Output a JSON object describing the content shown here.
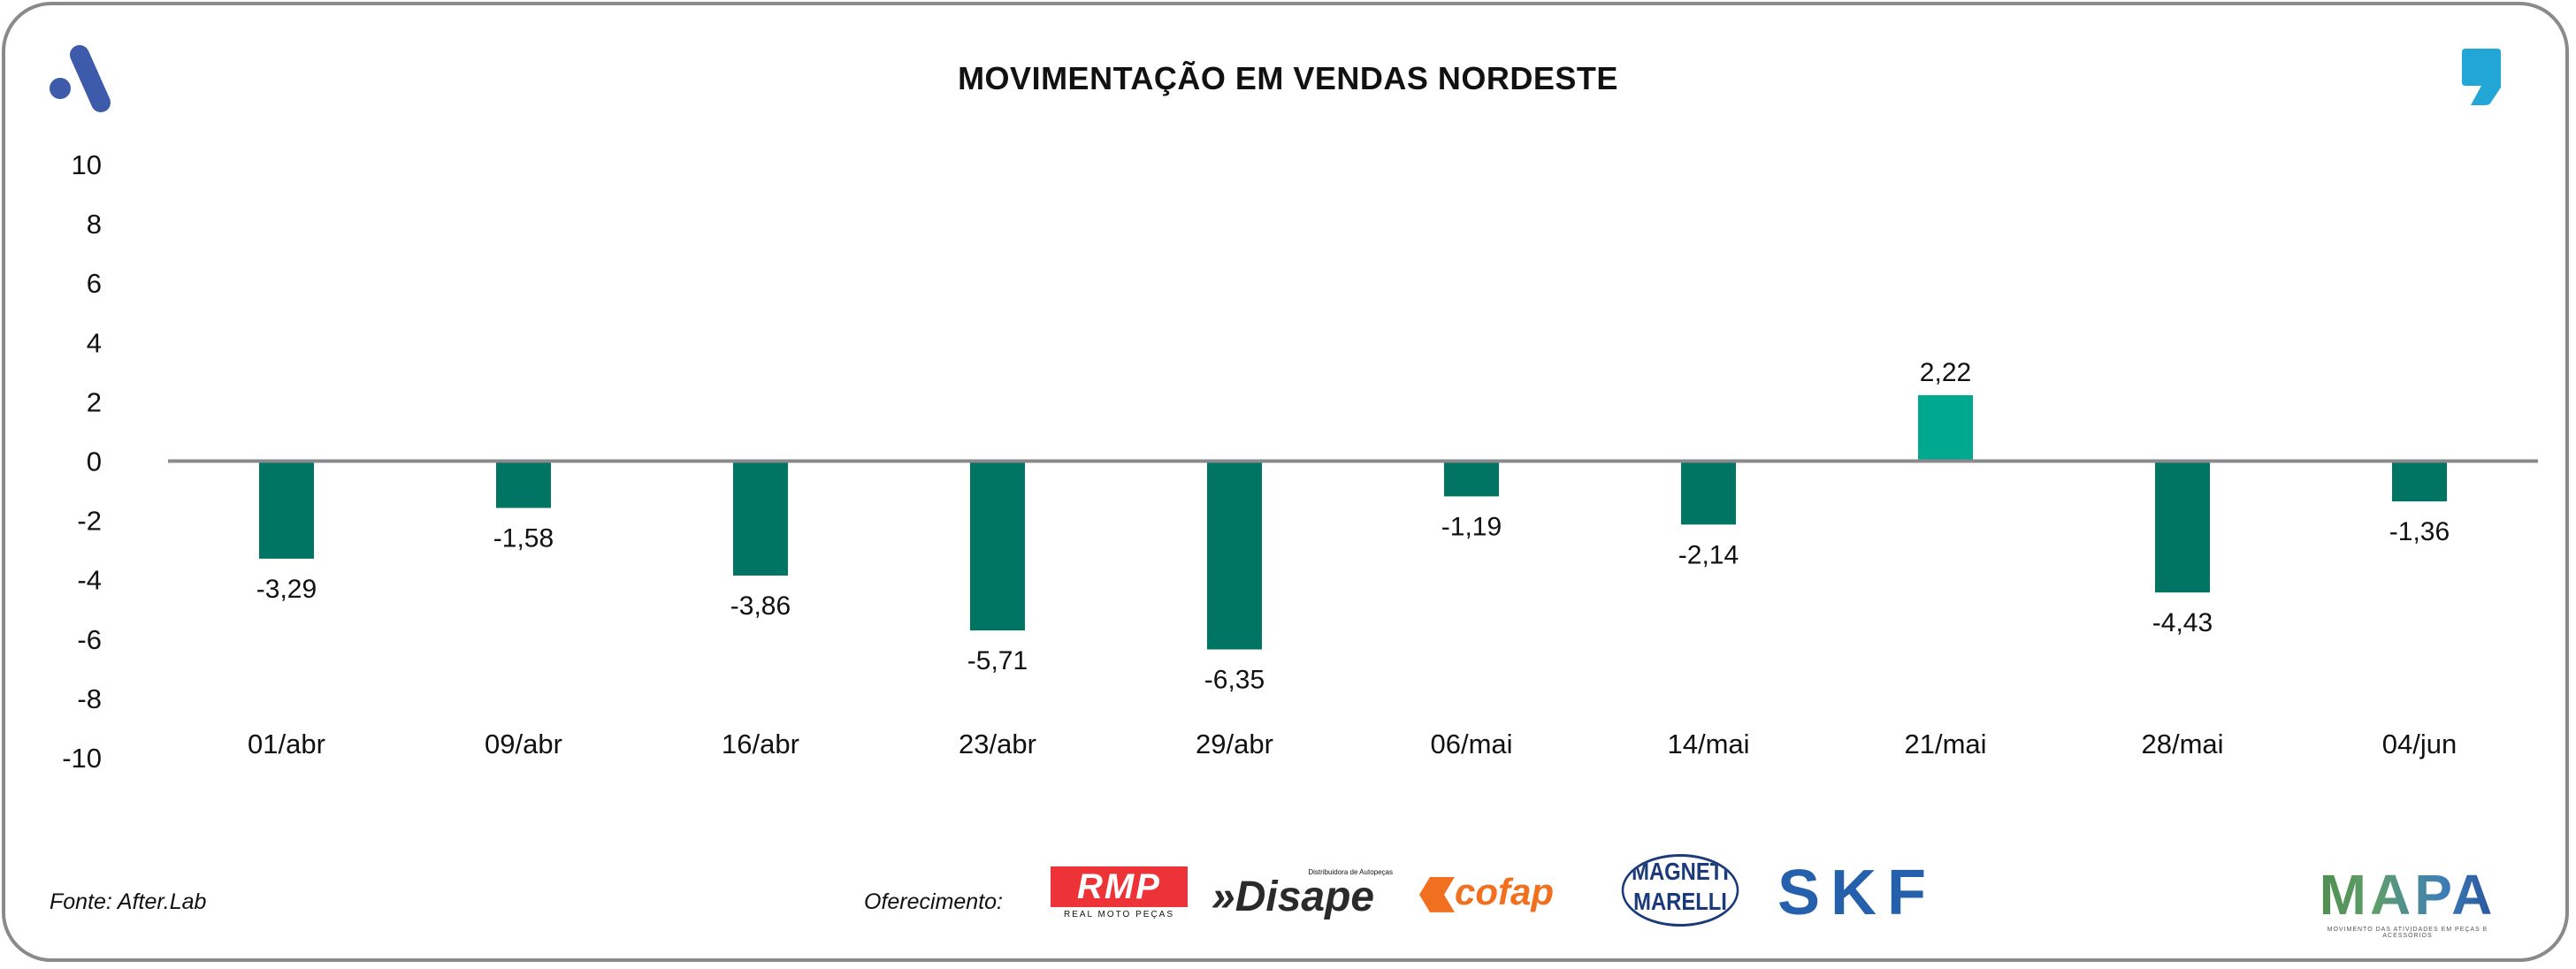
{
  "title": "MOVIMENTAÇÃO EM VENDAS NORDESTE",
  "footer": {
    "source": "Fonte: After.Lab",
    "sponsor_label": "Oferecimento:"
  },
  "logos": {
    "rmp": "RMP",
    "rmp_sub": "REAL MOTO PEÇAS",
    "disape": "Disape",
    "disape_sub": "Distribuidora de Autopeças",
    "cofap": "cofap",
    "magneti1": "MAGNETI",
    "magneti2": "MARELLI",
    "skf": "SKF",
    "mapa": "MAPA",
    "mapa_sub": "MOVIMENTO DAS ATIVIDADES EM PEÇAS E ACESSÓRIOS"
  },
  "colors": {
    "bar": "#007563",
    "highlight": "#00A88F",
    "axis": "#8a8a8c"
  },
  "chart_data": {
    "type": "bar",
    "title": "MOVIMENTAÇÃO EM VENDAS NORDESTE",
    "categories": [
      "01/abr",
      "09/abr",
      "16/abr",
      "23/abr",
      "29/abr",
      "06/mai",
      "14/mai",
      "21/mai",
      "28/mai",
      "04/jun"
    ],
    "values": [
      -3.29,
      -1.58,
      -3.86,
      -5.71,
      -6.35,
      -1.19,
      -2.14,
      2.22,
      -4.43,
      -1.36
    ],
    "labels": [
      "-3,29",
      "-1,58",
      "-3,86",
      "-5,71",
      "-6,35",
      "-1,19",
      "-2,14",
      "2,22",
      "-4,43",
      "-1,36"
    ],
    "yticks": [
      "10",
      "8",
      "6",
      "4",
      "2",
      "0",
      "-2",
      "-4",
      "-6",
      "-8",
      "-10"
    ],
    "ylim": [
      -10,
      10
    ],
    "xlabel": "",
    "ylabel": "",
    "grid": false
  }
}
